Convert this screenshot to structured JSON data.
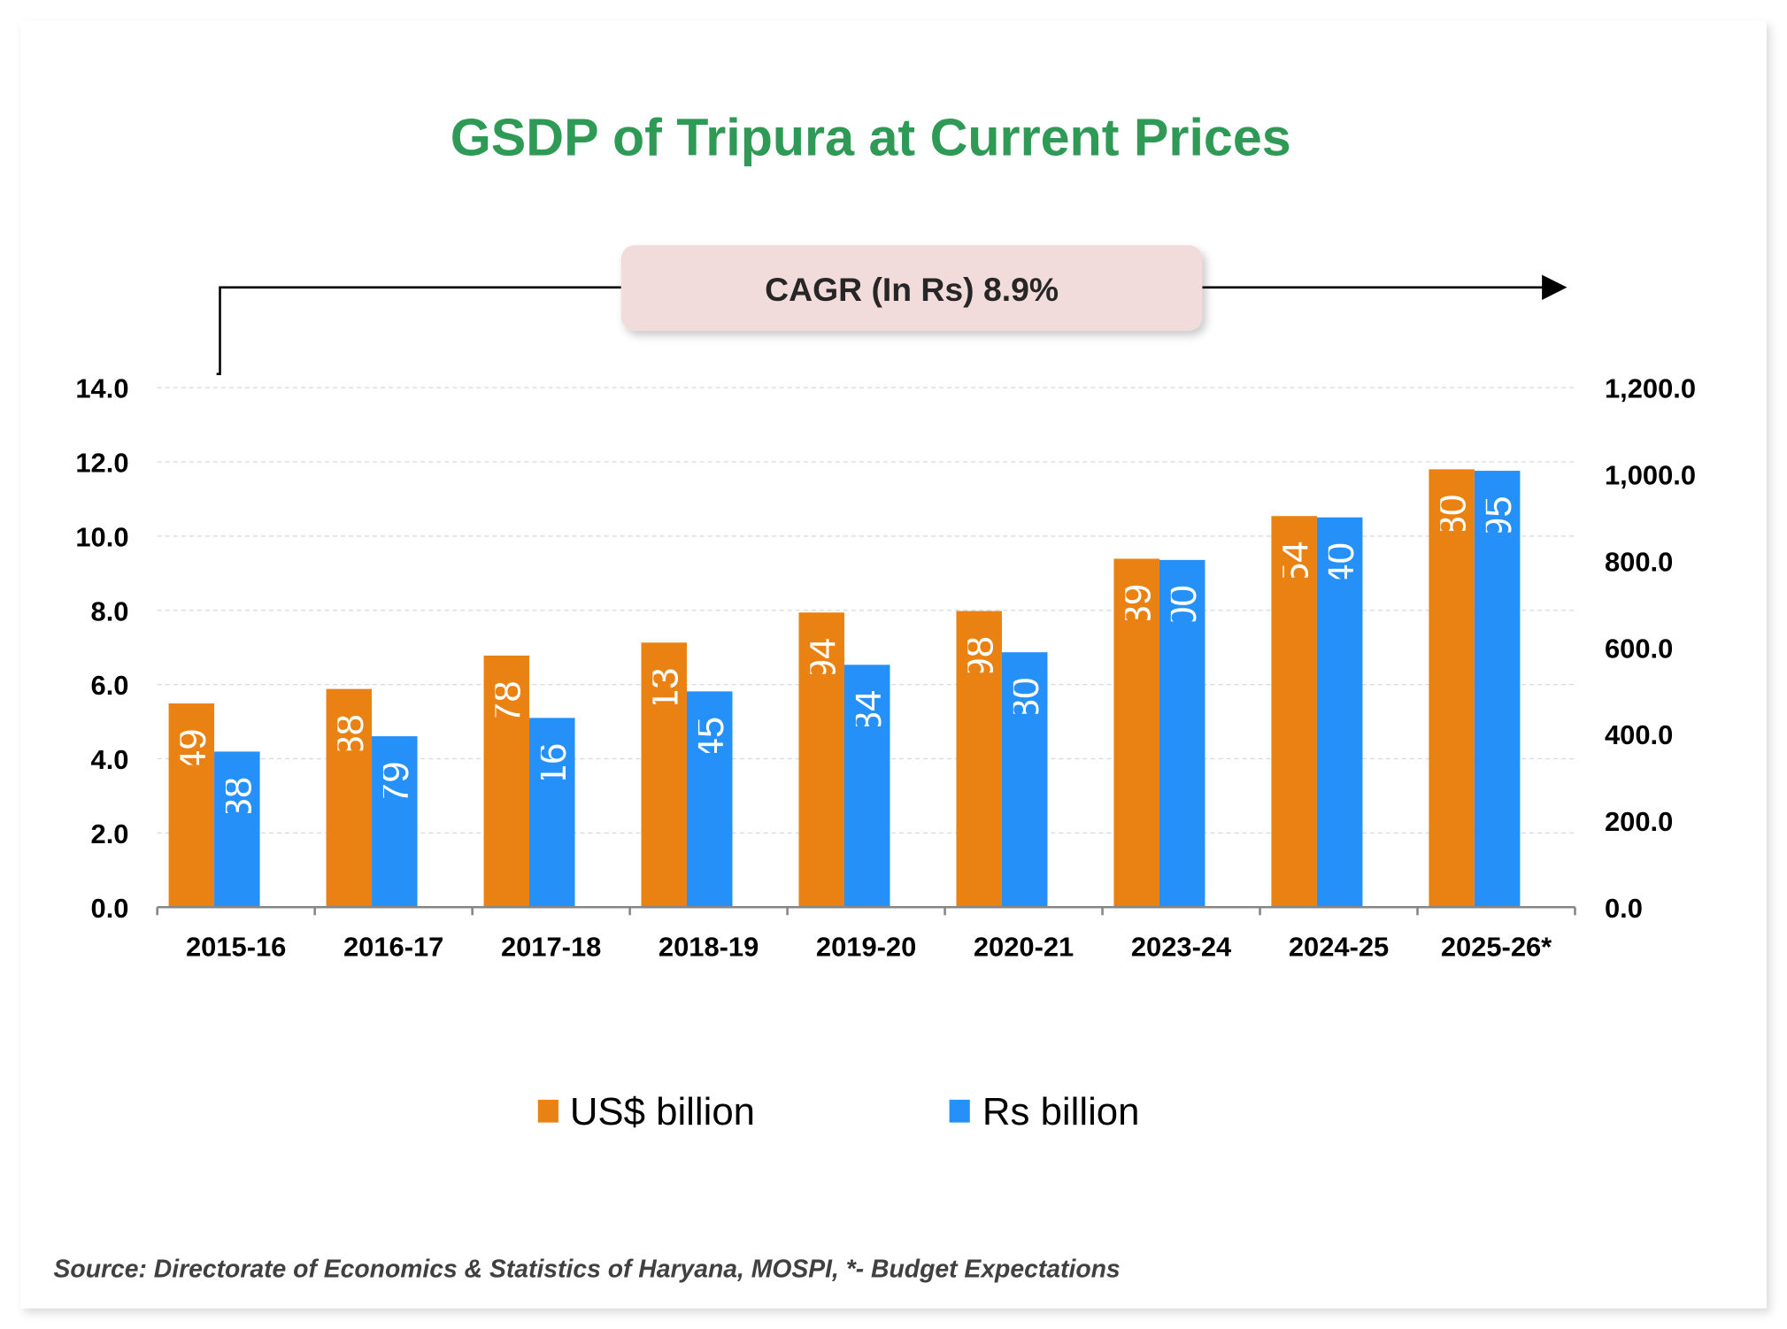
{
  "chart_data": {
    "type": "bar",
    "title": "GSDP of Tripura at Current Prices",
    "categories": [
      "2015-16",
      "2016-17",
      "2017-18",
      "2018-19",
      "2019-20",
      "2020-21",
      "2023-24",
      "2024-25",
      "2025-26*"
    ],
    "series": [
      {
        "name": "US$ billion",
        "axis": "left",
        "color": "#ea8213",
        "values": [
          5.49,
          5.88,
          6.78,
          7.13,
          7.94,
          7.98,
          9.39,
          10.54,
          11.8
        ],
        "labels": [
          "5.49",
          "5.88",
          "6.78",
          "7.13",
          "7.94",
          "7.98",
          "9.39",
          "10.54",
          "11.80"
        ]
      },
      {
        "name": "Rs billion",
        "axis": "right",
        "color": "#2590f7",
        "values": [
          359.38,
          394.79,
          437.16,
          498.45,
          559.84,
          588.8,
          802.0,
          900.4,
          1007.95
        ],
        "labels": [
          "359.38",
          "394.79",
          "437.16",
          "498.45",
          "559.84",
          "588.80",
          "802.00",
          "900.40",
          "1007.95"
        ]
      }
    ],
    "y_left": {
      "range": [
        0,
        14
      ],
      "ticks": [
        "0.0",
        "2.0",
        "4.0",
        "6.0",
        "8.0",
        "10.0",
        "12.0",
        "14.0"
      ]
    },
    "y_right": {
      "range": [
        0,
        1200
      ],
      "ticks": [
        "0.0",
        "200.0",
        "400.0",
        "600.0",
        "800.0",
        "1,000.0",
        "1,200.0"
      ]
    },
    "grid": true,
    "legend_placement": "bottom",
    "annotation": "CAGR (In Rs) 8.9%",
    "source": "Source: Directorate of Economics & Statistics of Haryana, MOSPI, *- Budget Expectations"
  },
  "colors": {
    "title": "#2e9a55",
    "annotation_box": "#f2dcdb",
    "source_text": "#404040"
  }
}
